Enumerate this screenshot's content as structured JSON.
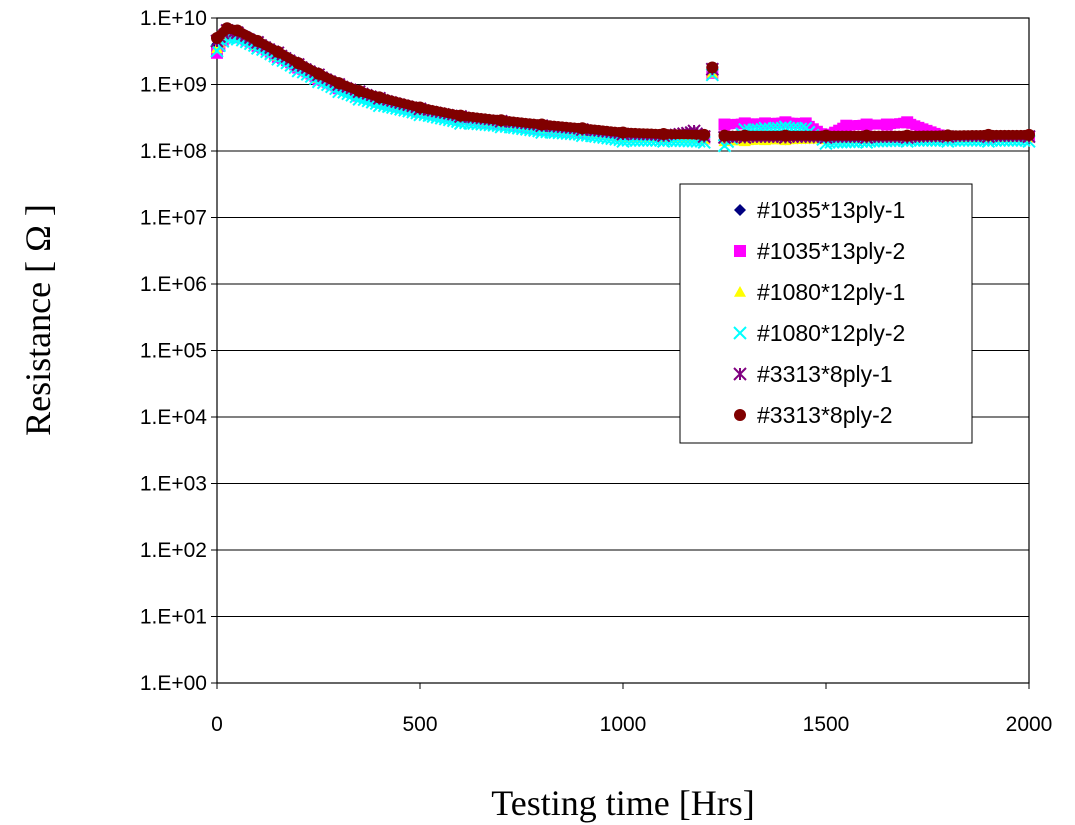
{
  "chart_data": {
    "type": "scatter",
    "xlabel": "Testing time [Hrs]",
    "ylabel": "Resistance [ Ω ]",
    "xlim": [
      0,
      2000
    ],
    "ylim": [
      1,
      10000000000
    ],
    "yscale": "log",
    "x_ticks": [
      "0",
      "500",
      "1000",
      "1500",
      "2000"
    ],
    "y_ticks": [
      "1.E+00",
      "1.E+01",
      "1.E+02",
      "1.E+03",
      "1.E+04",
      "1.E+05",
      "1.E+06",
      "1.E+07",
      "1.E+08",
      "1.E+09",
      "1.E+10"
    ],
    "grid": "horizontal",
    "legend_position": "right",
    "series": [
      {
        "name": "#1035*13ply-1",
        "marker": "diamond",
        "color": "#000080",
        "x": [
          0,
          25,
          50,
          100,
          150,
          200,
          250,
          300,
          350,
          400,
          500,
          600,
          700,
          800,
          900,
          1000,
          1100,
          1200,
          1220,
          1250,
          1300,
          1400,
          1500,
          1600,
          1700,
          1800,
          1900,
          2000
        ],
        "y": [
          4000000000,
          6000000000,
          5500000000,
          4000000000,
          2800000000,
          1900000000,
          1300000000,
          950000000,
          750000000,
          600000000,
          420000000,
          320000000,
          270000000,
          230000000,
          200000000,
          170000000,
          165000000,
          160000000,
          1600000000,
          150000000,
          150000000,
          150000000,
          150000000,
          155000000,
          155000000,
          155000000,
          158000000,
          160000000
        ]
      },
      {
        "name": "#1035*13ply-2",
        "marker": "square",
        "color": "#ff00ff",
        "x": [
          0,
          25,
          50,
          100,
          150,
          200,
          250,
          300,
          350,
          400,
          500,
          600,
          700,
          800,
          900,
          1000,
          1100,
          1200,
          1220,
          1250,
          1300,
          1350,
          1400,
          1450,
          1500,
          1550,
          1600,
          1650,
          1700,
          1800,
          1900,
          2000
        ],
        "y": [
          3000000000,
          5500000000,
          5200000000,
          3800000000,
          2600000000,
          1800000000,
          1200000000,
          880000000,
          680000000,
          550000000,
          390000000,
          300000000,
          250000000,
          210000000,
          190000000,
          165000000,
          160000000,
          155000000,
          1500000000,
          250000000,
          260000000,
          260000000,
          270000000,
          260000000,
          170000000,
          240000000,
          250000000,
          250000000,
          270000000,
          160000000,
          160000000,
          165000000
        ]
      },
      {
        "name": "#1080*12ply-1",
        "marker": "triangle",
        "color": "#ffff00",
        "x": [
          0,
          25,
          50,
          100,
          150,
          200,
          250,
          300,
          350,
          400,
          500,
          600,
          700,
          800,
          900,
          1000,
          1100,
          1200,
          1220,
          1250,
          1300,
          1350,
          1400,
          1500,
          1600,
          1700,
          1800,
          1900,
          2000
        ],
        "y": [
          3500000000,
          5800000000,
          5300000000,
          3900000000,
          2700000000,
          1850000000,
          1250000000,
          920000000,
          720000000,
          570000000,
          400000000,
          310000000,
          260000000,
          220000000,
          195000000,
          160000000,
          155000000,
          150000000,
          1500000000,
          140000000,
          140000000,
          145000000,
          145000000,
          150000000,
          150000000,
          155000000,
          155000000,
          158000000,
          160000000
        ]
      },
      {
        "name": "#1080*12ply-2",
        "marker": "x",
        "color": "#00ffff",
        "x": [
          0,
          25,
          50,
          100,
          150,
          200,
          250,
          300,
          350,
          400,
          500,
          600,
          700,
          800,
          900,
          1000,
          1100,
          1200,
          1220,
          1250,
          1300,
          1350,
          1400,
          1450,
          1500,
          1600,
          1700,
          1800,
          1900,
          2000
        ],
        "y": [
          3200000000,
          5000000000,
          4800000000,
          3500000000,
          2400000000,
          1600000000,
          1100000000,
          780000000,
          600000000,
          480000000,
          350000000,
          260000000,
          230000000,
          190000000,
          170000000,
          140000000,
          140000000,
          135000000,
          1400000000,
          120000000,
          210000000,
          220000000,
          230000000,
          220000000,
          130000000,
          135000000,
          140000000,
          140000000,
          140000000,
          140000000
        ]
      },
      {
        "name": "#3313*8ply-1",
        "marker": "asterisk",
        "color": "#800080",
        "x": [
          0,
          25,
          50,
          100,
          150,
          200,
          250,
          300,
          350,
          400,
          500,
          600,
          700,
          800,
          900,
          1000,
          1100,
          1175,
          1200,
          1220,
          1250,
          1300,
          1400,
          1500,
          1600,
          1700,
          1800,
          1900,
          2000
        ],
        "y": [
          4500000000,
          6500000000,
          6000000000,
          4300000000,
          3000000000,
          2000000000,
          1400000000,
          1000000000,
          780000000,
          620000000,
          430000000,
          330000000,
          280000000,
          240000000,
          210000000,
          180000000,
          170000000,
          200000000,
          165000000,
          1700000000,
          160000000,
          160000000,
          160000000,
          160000000,
          160000000,
          160000000,
          165000000,
          165000000,
          165000000
        ]
      },
      {
        "name": "#3313*8ply-2",
        "marker": "circle",
        "color": "#800000",
        "x": [
          0,
          25,
          50,
          100,
          150,
          200,
          250,
          300,
          350,
          400,
          500,
          600,
          700,
          800,
          900,
          1000,
          1100,
          1200,
          1220,
          1250,
          1300,
          1400,
          1500,
          1600,
          1700,
          1800,
          1900,
          2000
        ],
        "y": [
          5000000000,
          7000000000,
          6500000000,
          4500000000,
          3100000000,
          2100000000,
          1450000000,
          1050000000,
          800000000,
          640000000,
          450000000,
          340000000,
          290000000,
          250000000,
          220000000,
          190000000,
          180000000,
          175000000,
          1800000000,
          170000000,
          170000000,
          170000000,
          170000000,
          170000000,
          170000000,
          172000000,
          175000000,
          175000000
        ]
      }
    ]
  }
}
